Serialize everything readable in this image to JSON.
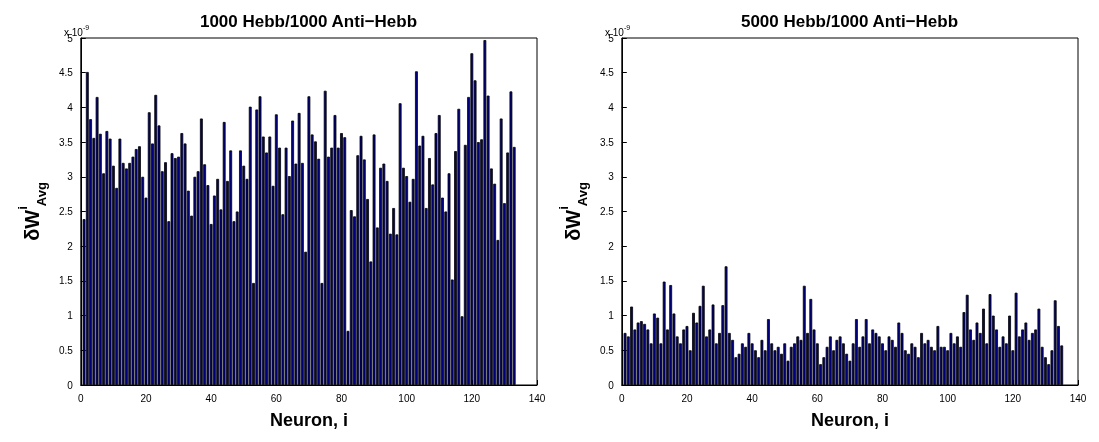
{
  "chart_data": [
    {
      "type": "bar",
      "title": "1000 Hebb/1000 Anti−Hebb",
      "xlabel": "Neuron, i",
      "ylabel": "δW$^{i}$$_{Avg}$",
      "annotations": [
        "x 10$^{-9}$"
      ],
      "xlim": [
        0,
        140
      ],
      "xticks": [
        0,
        20,
        40,
        60,
        80,
        100,
        120,
        140
      ],
      "ylim": [
        0,
        5
      ],
      "yticks": [
        0,
        0.5,
        1,
        1.5,
        2,
        2.5,
        3,
        3.5,
        4,
        4.5,
        5
      ],
      "grid": false,
      "color": "#000080",
      "x": [
        1,
        2,
        3,
        4,
        5,
        6,
        7,
        8,
        9,
        10,
        11,
        12,
        13,
        14,
        15,
        16,
        17,
        18,
        19,
        20,
        21,
        22,
        23,
        24,
        25,
        26,
        27,
        28,
        29,
        30,
        31,
        32,
        33,
        34,
        35,
        36,
        37,
        38,
        39,
        40,
        41,
        42,
        43,
        44,
        45,
        46,
        47,
        48,
        49,
        50,
        51,
        52,
        53,
        54,
        55,
        56,
        57,
        58,
        59,
        60,
        61,
        62,
        63,
        64,
        65,
        66,
        67,
        68,
        69,
        70,
        71,
        72,
        73,
        74,
        75,
        76,
        77,
        78,
        79,
        80,
        81,
        82,
        83,
        84,
        85,
        86,
        87,
        88,
        89,
        90,
        91,
        92,
        93,
        94,
        95,
        96,
        97,
        98,
        99,
        100,
        101,
        102,
        103,
        104,
        105,
        106,
        107,
        108,
        109,
        110,
        111,
        112,
        113,
        114,
        115,
        116,
        117,
        118,
        119,
        120,
        121,
        122,
        123,
        124,
        125,
        126,
        127,
        128,
        129,
        130,
        131,
        132,
        133
      ],
      "values": [
        2.39,
        4.51,
        3.83,
        3.56,
        4.15,
        3.62,
        3.05,
        3.66,
        3.55,
        3.16,
        2.84,
        3.55,
        3.2,
        3.12,
        3.2,
        3.29,
        3.4,
        3.44,
        3.0,
        2.7,
        3.93,
        3.48,
        4.18,
        3.74,
        3.08,
        3.21,
        2.36,
        3.34,
        3.27,
        3.29,
        3.63,
        3.48,
        2.8,
        2.44,
        3.0,
        3.08,
        3.84,
        3.18,
        2.88,
        2.32,
        2.73,
        2.97,
        2.53,
        3.79,
        2.94,
        3.38,
        2.36,
        2.5,
        3.38,
        3.16,
        2.97,
        4.01,
        1.47,
        3.97,
        4.16,
        3.58,
        3.35,
        3.58,
        2.87,
        3.9,
        3.42,
        2.46,
        3.42,
        3.01,
        3.81,
        3.19,
        3.92,
        3.2,
        1.92,
        4.16,
        3.61,
        3.51,
        3.26,
        1.47,
        4.24,
        3.29,
        3.42,
        3.89,
        3.42,
        3.63,
        3.57,
        0.78,
        2.52,
        2.43,
        3.31,
        3.59,
        3.25,
        2.68,
        1.78,
        3.61,
        2.27,
        3.13,
        3.19,
        2.94,
        2.18,
        2.55,
        2.17,
        4.06,
        3.13,
        3.01,
        2.64,
        2.97,
        4.52,
        3.45,
        3.59,
        2.55,
        3.27,
        2.89,
        3.63,
        3.89,
        2.7,
        2.5,
        3.05,
        1.52,
        3.37,
        3.98,
        0.99,
        3.46,
        4.15,
        4.78,
        4.39,
        3.5,
        3.54,
        4.97,
        4.17,
        3.12,
        2.9,
        2.09,
        3.84,
        2.62,
        3.35,
        4.23,
        3.43
      ]
    },
    {
      "type": "bar",
      "title": "5000 Hebb/1000 Anti−Hebb",
      "xlabel": "Neuron, i",
      "ylabel": "δW$^{i}$$_{Avg}$",
      "annotations": [
        "x 10$^{-9}$"
      ],
      "xlim": [
        0,
        140
      ],
      "xticks": [
        0,
        20,
        40,
        60,
        80,
        100,
        120,
        140
      ],
      "ylim": [
        0,
        5
      ],
      "yticks": [
        0,
        0.5,
        1,
        1.5,
        2,
        2.5,
        3,
        3.5,
        4,
        4.5,
        5
      ],
      "grid": false,
      "color": "#000080",
      "x": [
        1,
        2,
        3,
        4,
        5,
        6,
        7,
        8,
        9,
        10,
        11,
        12,
        13,
        14,
        15,
        16,
        17,
        18,
        19,
        20,
        21,
        22,
        23,
        24,
        25,
        26,
        27,
        28,
        29,
        30,
        31,
        32,
        33,
        34,
        35,
        36,
        37,
        38,
        39,
        40,
        41,
        42,
        43,
        44,
        45,
        46,
        47,
        48,
        49,
        50,
        51,
        52,
        53,
        54,
        55,
        56,
        57,
        58,
        59,
        60,
        61,
        62,
        63,
        64,
        65,
        66,
        67,
        68,
        69,
        70,
        71,
        72,
        73,
        74,
        75,
        76,
        77,
        78,
        79,
        80,
        81,
        82,
        83,
        84,
        85,
        86,
        87,
        88,
        89,
        90,
        91,
        92,
        93,
        94,
        95,
        96,
        97,
        98,
        99,
        100,
        101,
        102,
        103,
        104,
        105,
        106,
        107,
        108,
        109,
        110,
        111,
        112,
        113,
        114,
        115,
        116,
        117,
        118,
        119,
        120,
        121,
        122,
        123,
        124,
        125,
        126,
        127,
        128,
        129,
        130,
        131,
        132,
        133,
        134,
        135
      ],
      "values": [
        0.75,
        0.7,
        1.13,
        0.8,
        0.9,
        0.92,
        0.88,
        0.8,
        0.6,
        1.03,
        0.97,
        0.6,
        1.49,
        0.8,
        1.44,
        1.03,
        0.7,
        0.6,
        0.8,
        0.85,
        0.5,
        1.04,
        0.9,
        1.14,
        1.43,
        0.7,
        0.8,
        1.16,
        0.6,
        0.75,
        1.15,
        1.71,
        0.75,
        0.65,
        0.4,
        0.45,
        0.6,
        0.55,
        0.75,
        0.6,
        0.5,
        0.4,
        0.65,
        0.5,
        0.95,
        0.6,
        0.5,
        0.55,
        0.45,
        0.6,
        0.35,
        0.55,
        0.6,
        0.7,
        0.65,
        1.43,
        0.75,
        1.24,
        0.8,
        0.6,
        0.3,
        0.4,
        0.55,
        0.7,
        0.5,
        0.65,
        0.7,
        0.6,
        0.45,
        0.35,
        0.6,
        0.95,
        0.55,
        0.7,
        0.95,
        0.6,
        0.8,
        0.75,
        0.7,
        0.6,
        0.5,
        0.7,
        0.65,
        0.55,
        0.9,
        0.75,
        0.5,
        0.45,
        0.6,
        0.55,
        0.4,
        0.75,
        0.6,
        0.65,
        0.55,
        0.5,
        0.85,
        0.55,
        0.55,
        0.5,
        0.75,
        0.6,
        0.7,
        0.55,
        1.05,
        1.3,
        0.8,
        0.65,
        0.9,
        0.75,
        1.1,
        0.6,
        1.31,
        1.0,
        0.8,
        0.55,
        0.7,
        0.6,
        1.0,
        0.5,
        1.33,
        0.7,
        0.8,
        0.9,
        0.65,
        0.75,
        0.8,
        1.1,
        0.55,
        0.4,
        0.3,
        0.5,
        1.22,
        0.85,
        0.57
      ]
    }
  ]
}
